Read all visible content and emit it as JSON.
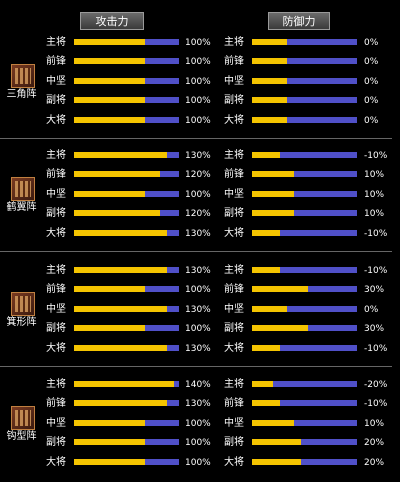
{
  "headers": {
    "attack": "攻击力",
    "defense": "防御力"
  },
  "groups": [
    {
      "formation": "三角阵",
      "rows": [
        {
          "role": "主将",
          "attack": 100,
          "attack_label": "100%",
          "defense": 0,
          "defense_label": "0%"
        },
        {
          "role": "前锋",
          "attack": 100,
          "attack_label": "100%",
          "defense": 0,
          "defense_label": "0%"
        },
        {
          "role": "中坚",
          "attack": 100,
          "attack_label": "100%",
          "defense": 0,
          "defense_label": "0%"
        },
        {
          "role": "副将",
          "attack": 100,
          "attack_label": "100%",
          "defense": 0,
          "defense_label": "0%"
        },
        {
          "role": "大将",
          "attack": 100,
          "attack_label": "100%",
          "defense": 0,
          "defense_label": "0%"
        }
      ]
    },
    {
      "formation": "鹤翼阵",
      "rows": [
        {
          "role": "主将",
          "attack": 130,
          "attack_label": "130%",
          "defense": -10,
          "defense_label": "-10%"
        },
        {
          "role": "前锋",
          "attack": 120,
          "attack_label": "120%",
          "defense": 10,
          "defense_label": "10%"
        },
        {
          "role": "中坚",
          "attack": 100,
          "attack_label": "100%",
          "defense": 10,
          "defense_label": "10%"
        },
        {
          "role": "副将",
          "attack": 120,
          "attack_label": "120%",
          "defense": 10,
          "defense_label": "10%"
        },
        {
          "role": "大将",
          "attack": 130,
          "attack_label": "130%",
          "defense": -10,
          "defense_label": "-10%"
        }
      ]
    },
    {
      "formation": "箕形阵",
      "rows": [
        {
          "role": "主将",
          "attack": 130,
          "attack_label": "130%",
          "defense": -10,
          "defense_label": "-10%"
        },
        {
          "role": "前锋",
          "attack": 100,
          "attack_label": "100%",
          "defense": 30,
          "defense_label": "30%"
        },
        {
          "role": "中坚",
          "attack": 130,
          "attack_label": "130%",
          "defense": 0,
          "defense_label": "0%"
        },
        {
          "role": "副将",
          "attack": 100,
          "attack_label": "100%",
          "defense": 30,
          "defense_label": "30%"
        },
        {
          "role": "大将",
          "attack": 130,
          "attack_label": "130%",
          "defense": -10,
          "defense_label": "-10%"
        }
      ]
    },
    {
      "formation": "钩型阵",
      "rows": [
        {
          "role": "主将",
          "attack": 140,
          "attack_label": "140%",
          "defense": -20,
          "defense_label": "-20%"
        },
        {
          "role": "前锋",
          "attack": 130,
          "attack_label": "130%",
          "defense": -10,
          "defense_label": "-10%"
        },
        {
          "role": "中坚",
          "attack": 100,
          "attack_label": "100%",
          "defense": 10,
          "defense_label": "10%"
        },
        {
          "role": "副将",
          "attack": 100,
          "attack_label": "100%",
          "defense": 20,
          "defense_label": "20%"
        },
        {
          "role": "大将",
          "attack": 100,
          "attack_label": "100%",
          "defense": 20,
          "defense_label": "20%"
        }
      ]
    }
  ],
  "colors": {
    "attack_fill": "#f4c400",
    "track": "#5050c8"
  }
}
